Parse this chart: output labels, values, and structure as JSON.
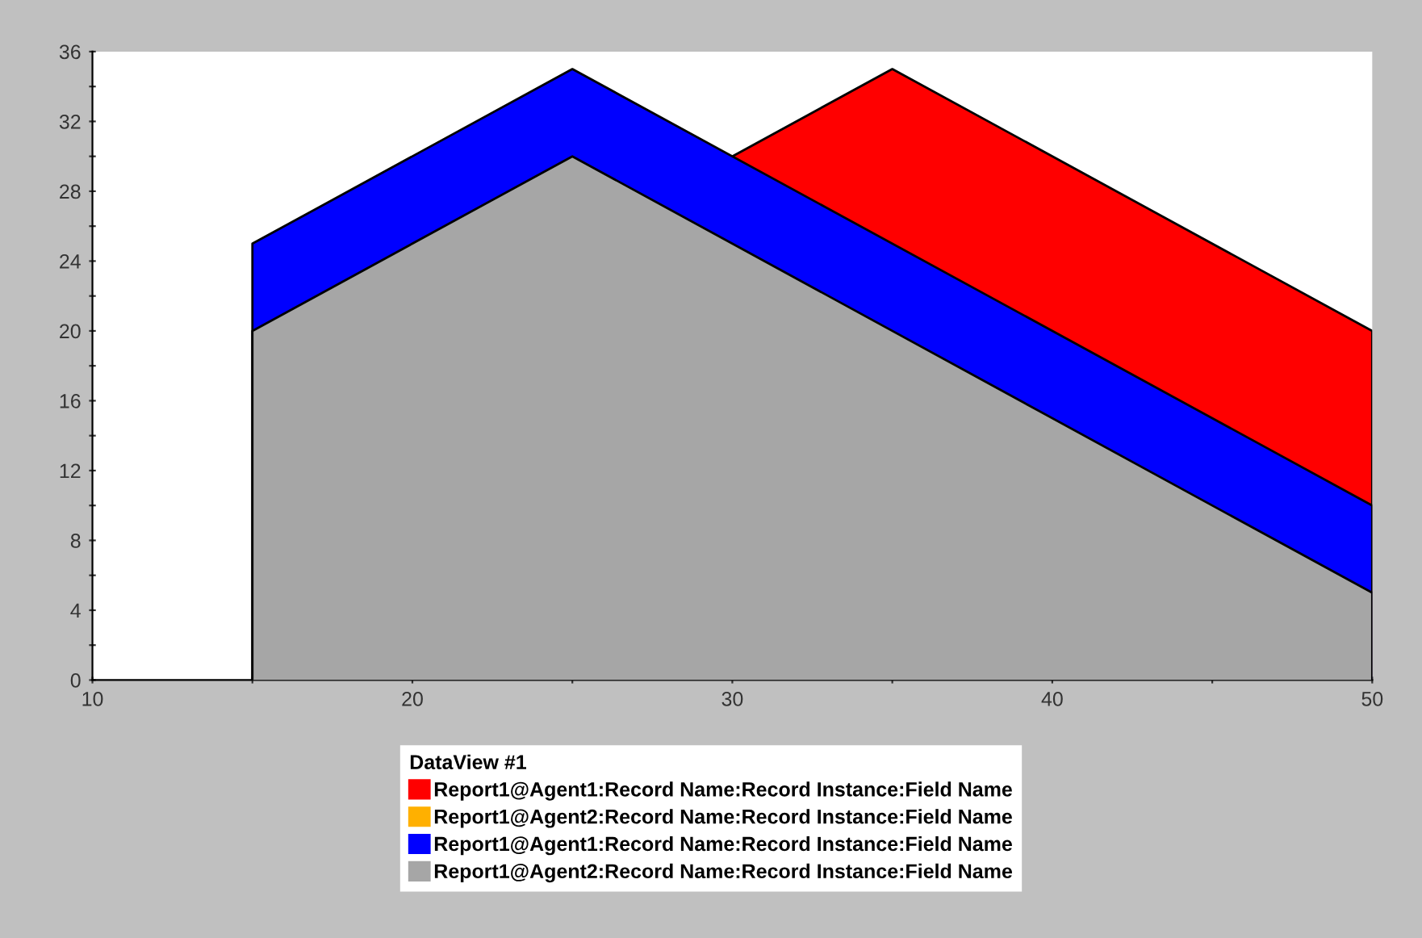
{
  "chart_data": {
    "type": "area",
    "xlim": [
      10,
      50
    ],
    "ylim": [
      0,
      36
    ],
    "xticks": [
      10,
      {
        "value": 15,
        "label": null
      },
      20,
      {
        "value": 25,
        "label": null
      },
      30,
      {
        "value": 35,
        "label": null
      },
      40,
      {
        "value": 45,
        "label": null
      },
      50
    ],
    "yticks": [
      0,
      {
        "value": 2,
        "label": null
      },
      4,
      {
        "value": 6,
        "label": null
      },
      8,
      {
        "value": 10,
        "label": null
      },
      12,
      {
        "value": 14,
        "label": null
      },
      16,
      {
        "value": 18,
        "label": null
      },
      20,
      {
        "value": 22,
        "label": null
      },
      24,
      {
        "value": 26,
        "label": null
      },
      28,
      {
        "value": 30,
        "label": null
      },
      32,
      {
        "value": 34,
        "label": null
      },
      36
    ],
    "legend": "bottom",
    "legend_title": "DataView #1",
    "grid": false,
    "series": [
      {
        "name": "Report1@Agent1:Record Name:Record Instance:Field Name",
        "color": "#ff0000",
        "x": [
          30,
          35,
          50
        ],
        "values": [
          30,
          35,
          20
        ]
      },
      {
        "name": "Report1@Agent2:Record Name:Record Instance:Field Name",
        "color": "#ffb000"
      },
      {
        "name": "Report1@Agent1:Record Name:Record Instance:Field Name",
        "color": "#0000ff",
        "x": [
          15,
          25,
          50
        ],
        "values": [
          25,
          35,
          10
        ]
      },
      {
        "name": "Report1@Agent2:Record Name:Record Instance:Field Name",
        "color": "#a6a6a6",
        "x": [
          15,
          25,
          50
        ],
        "values": [
          20,
          30,
          5
        ]
      }
    ]
  }
}
